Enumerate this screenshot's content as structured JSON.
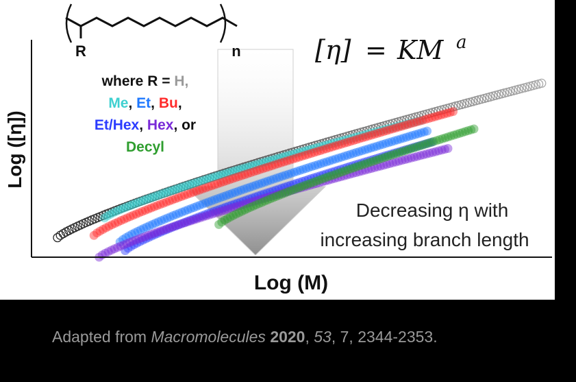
{
  "chart_data": {
    "type": "scatter",
    "title": "",
    "xlabel": "Log (M)",
    "ylabel": "Log ([η])",
    "grid": false,
    "axis_ticks": false,
    "equation": {
      "lhs": "[η]",
      "eq": "=",
      "rhs": "KM",
      "exp": "a"
    },
    "structure": {
      "substituent": "R",
      "subscript": "n"
    },
    "legend_lines": [
      [
        {
          "text": "where R = ",
          "color": "#111111"
        },
        {
          "text": "H,",
          "color": "#9a9a9a"
        }
      ],
      [
        {
          "text": "Me",
          "color": "#3fd0d0"
        },
        {
          "text": ", ",
          "color": "#111111"
        },
        {
          "text": "Et",
          "color": "#1e78ff"
        },
        {
          "text": ", ",
          "color": "#111111"
        },
        {
          "text": "Bu",
          "color": "#ff2a2a"
        },
        {
          "text": ",",
          "color": "#111111"
        }
      ],
      [
        {
          "text": "Et/Hex",
          "color": "#2b3cff"
        },
        {
          "text": ", ",
          "color": "#111111"
        },
        {
          "text": "Hex",
          "color": "#7a2ad8"
        },
        {
          "text": ", or",
          "color": "#111111"
        }
      ],
      [
        {
          "text": "Decyl",
          "color": "#2f9e2f"
        }
      ]
    ],
    "annotation_lines": [
      "Decreasing η with",
      "increasing branch length"
    ],
    "xlim": [
      0,
      10
    ],
    "ylim": [
      0,
      10
    ],
    "series": [
      {
        "name": "H",
        "color": "#9a9a9a",
        "style": "open",
        "x": [
          0.5,
          9.8
        ],
        "y": [
          0.9,
          8.0
        ],
        "points": 170
      },
      {
        "name": "Me",
        "color": "#3fd0d0",
        "style": "filled",
        "x": [
          1.4,
          7.5
        ],
        "y": [
          1.8,
          6.3
        ],
        "points": 110
      },
      {
        "name": "Bu",
        "color": "#ff2a2a",
        "style": "filled",
        "x": [
          1.2,
          8.1
        ],
        "y": [
          1.0,
          6.7
        ],
        "points": 120
      },
      {
        "name": "Et",
        "color": "#1e78ff",
        "style": "filled",
        "x": [
          1.7,
          7.6
        ],
        "y": [
          0.7,
          5.8
        ],
        "points": 105
      },
      {
        "name": "Et/Hex",
        "color": "#2b3cff",
        "style": "filled",
        "x": [
          1.8,
          7.7
        ],
        "y": [
          0.3,
          5.3
        ],
        "points": 105
      },
      {
        "name": "Hex",
        "color": "#7a2ad8",
        "style": "filled",
        "x": [
          1.3,
          8.0
        ],
        "y": [
          0.0,
          5.0
        ],
        "points": 115
      },
      {
        "name": "Decyl",
        "color": "#2f9e2f",
        "style": "filled",
        "x": [
          3.6,
          8.5
        ],
        "y": [
          1.5,
          5.9
        ],
        "points": 90
      }
    ]
  },
  "caption": {
    "prefix": "Adapted from ",
    "journal": "Macromolecules",
    "year": "2020",
    "sep1": ", ",
    "volume": "53",
    "rest": ", 7, 2344-2353."
  }
}
